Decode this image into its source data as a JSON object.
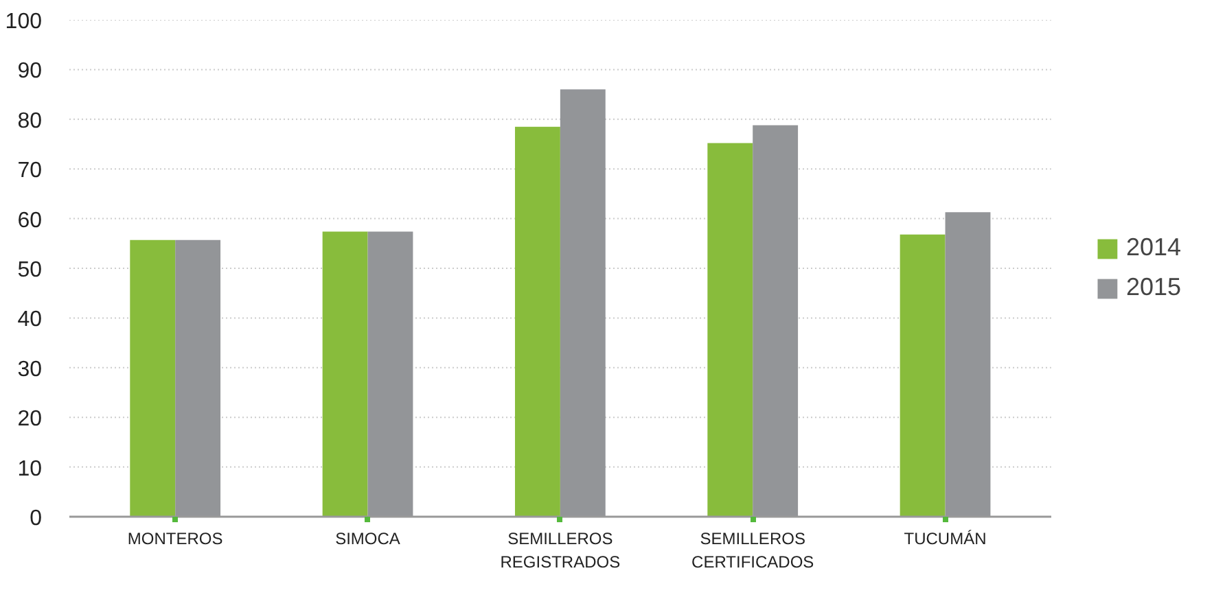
{
  "chart_data": {
    "type": "bar",
    "categories": [
      "MONTEROS",
      "SIMOCA",
      "SEMILLEROS REGISTRADOS",
      "SEMILLEROS CERTIFICADOS",
      "TUCUMÁN"
    ],
    "series": [
      {
        "name": "2014",
        "color": "#88bc3c",
        "values": [
          55.7,
          57.4,
          78.5,
          75.2,
          56.8
        ]
      },
      {
        "name": "2015",
        "color": "#939598",
        "values": [
          55.7,
          57.4,
          86.0,
          78.8,
          61.3
        ]
      }
    ],
    "ylim": [
      0,
      100
    ],
    "yticks": [
      0,
      10,
      20,
      30,
      40,
      50,
      60,
      70,
      80,
      90,
      100
    ],
    "grid": "y",
    "legend": "right"
  }
}
